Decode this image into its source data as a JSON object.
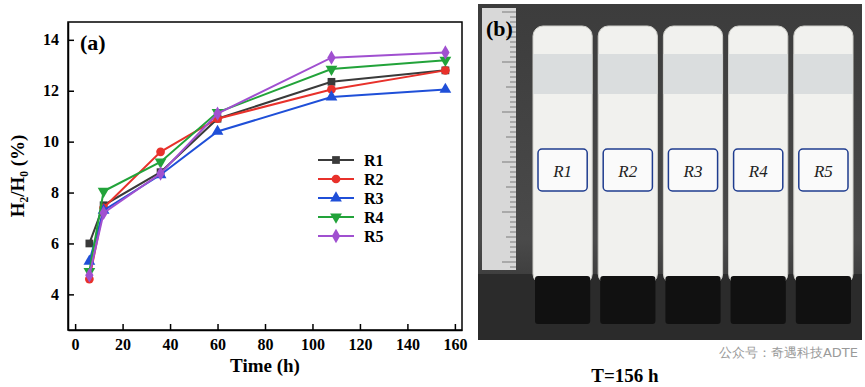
{
  "chart_data": {
    "type": "line",
    "title": "(a)",
    "x_label": "Time (h)",
    "y_label": "H₂/H₀ (%)",
    "x": [
      6,
      12,
      36,
      60,
      108,
      156
    ],
    "series": [
      {
        "name": "R1",
        "color": "#3a3a3a",
        "marker": "square",
        "values": [
          6.0,
          7.5,
          8.8,
          10.9,
          12.35,
          12.8
        ]
      },
      {
        "name": "R2",
        "color": "#e8312b",
        "marker": "circle",
        "values": [
          4.6,
          7.4,
          9.6,
          10.9,
          12.05,
          12.8
        ]
      },
      {
        "name": "R3",
        "color": "#1f4fd8",
        "marker": "triangle",
        "values": [
          5.3,
          7.3,
          8.7,
          10.4,
          11.75,
          12.05
        ]
      },
      {
        "name": "R4",
        "color": "#22a33a",
        "marker": "triangle-down",
        "values": [
          4.9,
          8.05,
          9.2,
          11.15,
          12.85,
          13.2
        ]
      },
      {
        "name": "R5",
        "color": "#a050d0",
        "marker": "diamond",
        "values": [
          4.75,
          7.2,
          8.75,
          11.1,
          13.3,
          13.5
        ]
      }
    ],
    "xlim": [
      -3,
      163
    ],
    "xticks": [
      0,
      20,
      40,
      60,
      80,
      100,
      120,
      140,
      160
    ],
    "ylim": [
      2.6,
      14.7
    ],
    "yticks": [
      4,
      6,
      8,
      10,
      12,
      14
    ],
    "legend": "right",
    "grid": false
  },
  "photo": {
    "panel_label": "(b)",
    "samples": [
      "R1",
      "R2",
      "R3",
      "R4",
      "R5"
    ],
    "caption": "T=156 h"
  },
  "watermark": "公众号：奇遇科技ADTE"
}
